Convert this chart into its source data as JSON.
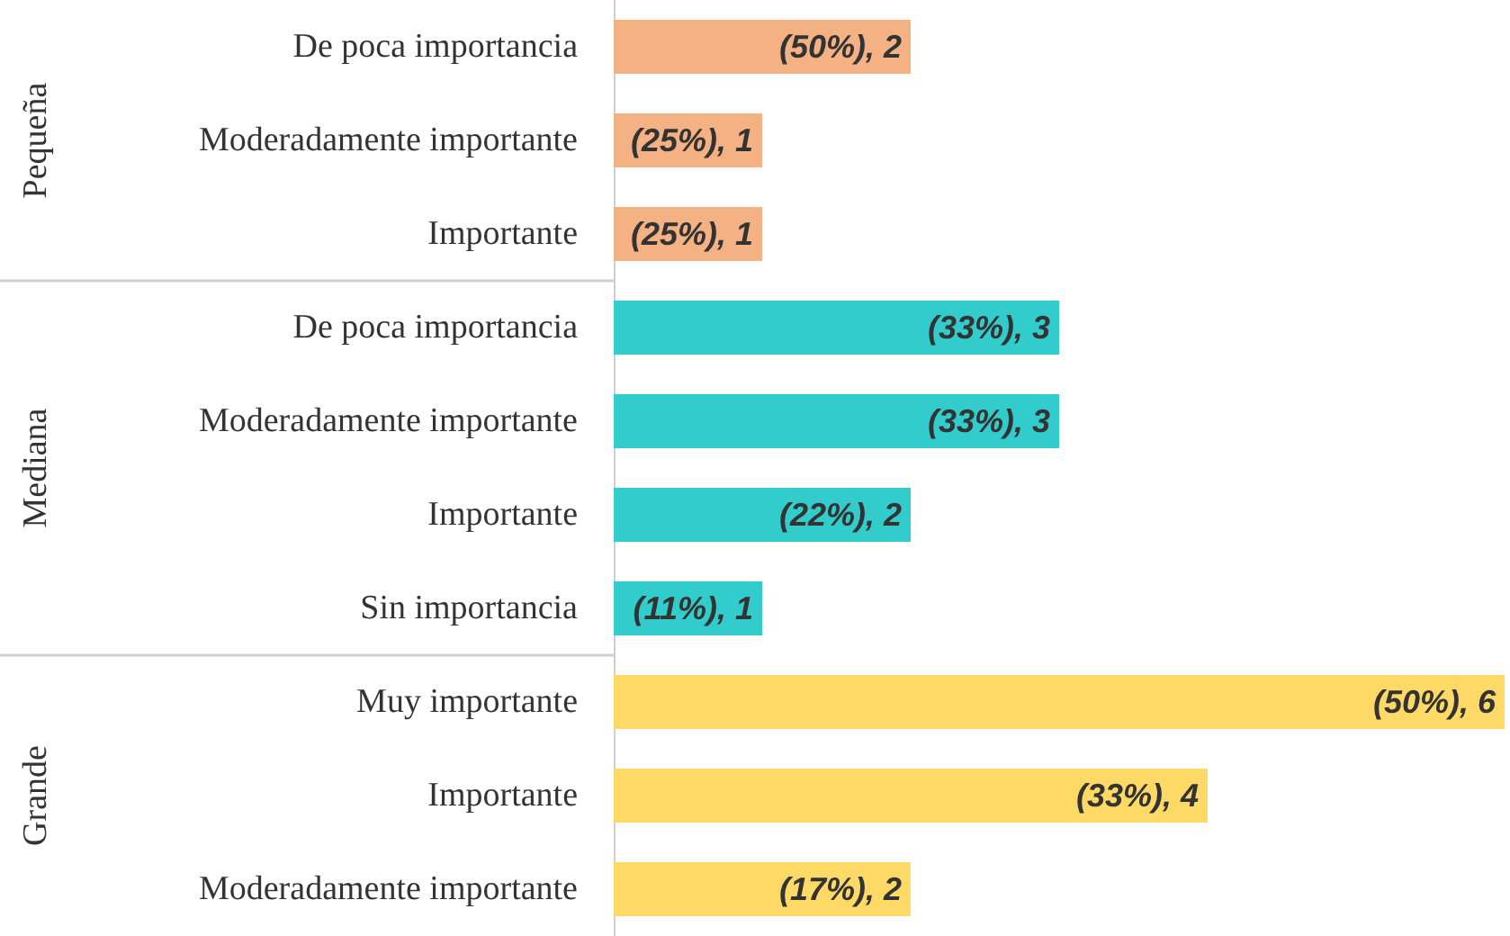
{
  "chart_data": {
    "type": "bar",
    "orientation": "horizontal",
    "annotations": [
      "Pequeña",
      "Mediana",
      "Grande"
    ],
    "categories": [
      "De poca importancia",
      "Moderadamente importante",
      "Importante",
      "De poca importancia",
      "Moderadamente importante",
      "Importante",
      "Sin importancia",
      "Muy importante",
      "Importante",
      "Moderadamente importante"
    ],
    "series": [
      {
        "color": "#f4b183",
        "values": [
          2,
          1,
          1,
          null,
          null,
          null,
          null,
          null,
          null,
          null
        ],
        "value_labels": [
          "(50%), 2",
          "(25%), 1",
          "(25%), 1",
          null,
          null,
          null,
          null,
          null,
          null,
          null
        ]
      },
      {
        "color": "#33cccc",
        "values": [
          null,
          null,
          null,
          3,
          3,
          2,
          1,
          null,
          null,
          null
        ],
        "value_labels": [
          null,
          null,
          null,
          "(33%), 3",
          "(33%), 3",
          "(22%), 2",
          "(11%), 1",
          null,
          null,
          null
        ]
      },
      {
        "color": "#ffd966",
        "values": [
          null,
          null,
          null,
          null,
          null,
          null,
          null,
          6,
          4,
          2
        ],
        "value_labels": [
          null,
          null,
          null,
          null,
          null,
          null,
          null,
          "(50%), 6",
          "(33%), 4",
          "(17%), 2"
        ]
      }
    ]
  }
}
